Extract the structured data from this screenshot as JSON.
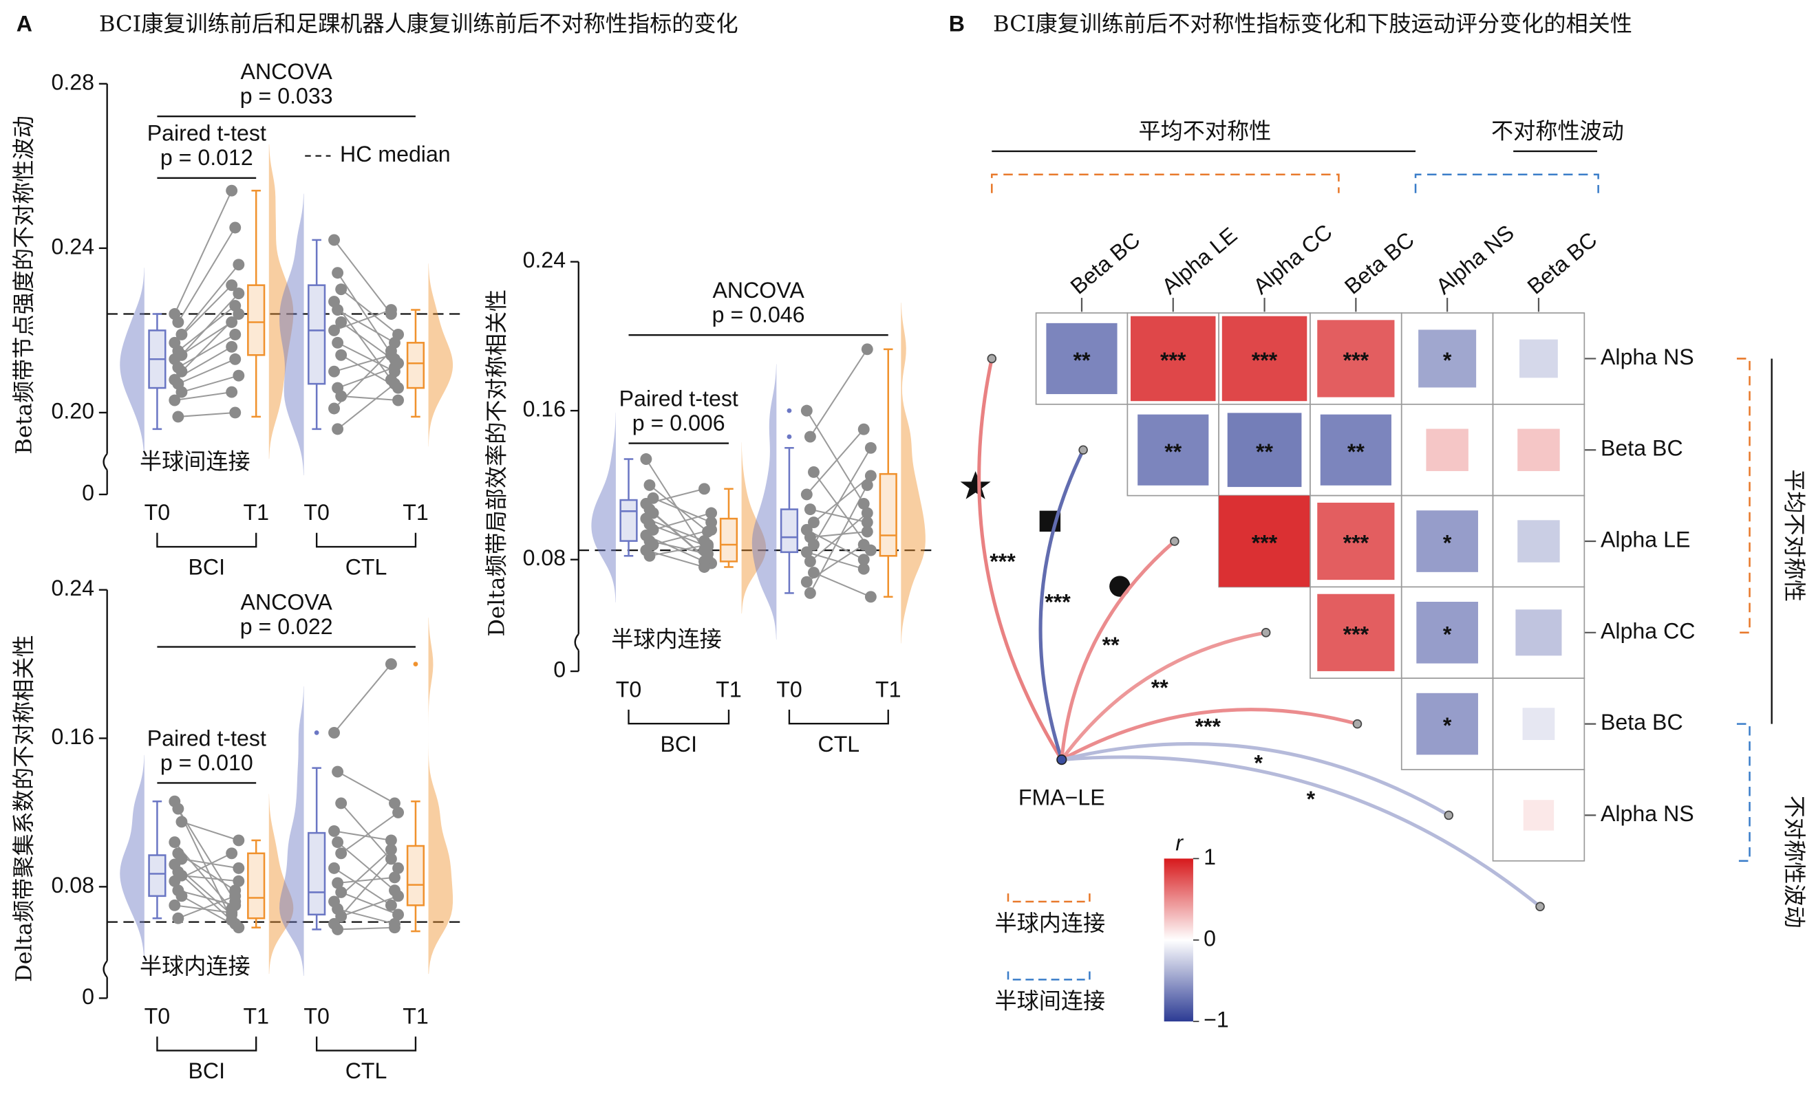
{
  "panels": [
    {
      "label": "A",
      "title": "BCI康复训练前后和足踝机器人康复训练前后不对称性指标的变化"
    },
    {
      "label": "B",
      "title": "BCI康复训练前后不对称性指标变化和下肢运动评分变化的相关性"
    }
  ],
  "chart_data": [
    {
      "type": "box",
      "ylabel": "Beta频带节点强度的不对称性波动",
      "ylim": [
        0.19,
        0.28
      ],
      "yticks": [
        0,
        {
          "value": 0.2,
          "label": "0.20"
        },
        0.24,
        0.28
      ],
      "axis_break": true,
      "categories": [
        "T0",
        "T1",
        "T0",
        "T1"
      ],
      "groups": [
        "BCI",
        "CTL"
      ],
      "colors": [
        "#6b77c4",
        "#f0922e",
        "#6b77c4",
        "#f0922e"
      ],
      "boxes": [
        {
          "whisker_low": 0.196,
          "q1": 0.206,
          "median": 0.213,
          "q3": 0.22,
          "whisker_high": 0.224
        },
        {
          "whisker_low": 0.199,
          "q1": 0.214,
          "median": 0.222,
          "q3": 0.231,
          "whisker_high": 0.254
        },
        {
          "whisker_low": 0.196,
          "q1": 0.207,
          "median": 0.22,
          "q3": 0.231,
          "whisker_high": 0.242
        },
        {
          "whisker_low": 0.199,
          "q1": 0.206,
          "median": 0.212,
          "q3": 0.217,
          "whisker_high": 0.225
        }
      ],
      "points": [
        [
          0.224,
          0.222,
          0.219,
          0.217,
          0.215,
          0.214,
          0.213,
          0.211,
          0.21,
          0.208,
          0.207,
          0.205,
          0.203,
          0.199
        ],
        [
          0.254,
          0.245,
          0.236,
          0.231,
          0.226,
          0.229,
          0.222,
          0.219,
          0.224,
          0.216,
          0.213,
          0.209,
          0.205,
          0.2
        ],
        [
          0.242,
          0.234,
          0.23,
          0.227,
          0.225,
          0.222,
          0.22,
          0.217,
          0.214,
          0.21,
          0.206,
          0.204,
          0.201,
          0.196
        ],
        [
          0.224,
          0.213,
          0.219,
          0.208,
          0.217,
          0.212,
          0.225,
          0.21,
          0.206,
          0.214,
          0.211,
          0.203,
          0.215,
          0.207
        ]
      ],
      "hc_median": 0.224,
      "hc_label": "HC median",
      "region_label": "半球间连接",
      "tests": [
        {
          "name": "ANCOVA",
          "p": "p = 0.033"
        },
        {
          "name": "Paired t-test",
          "p": "p = 0.012"
        }
      ]
    },
    {
      "type": "box",
      "ylabel": "Delta频带聚集系数的不对称相关性",
      "ylim": [
        0.04,
        0.24
      ],
      "yticks": [
        0,
        0.08,
        0.16,
        0.24
      ],
      "axis_break": true,
      "categories": [
        "T0",
        "T1",
        "T0",
        "T1"
      ],
      "groups": [
        "BCI",
        "CTL"
      ],
      "colors": [
        "#6b77c4",
        "#f0922e",
        "#6b77c4",
        "#f0922e"
      ],
      "boxes": [
        {
          "whisker_low": 0.063,
          "q1": 0.075,
          "median": 0.087,
          "q3": 0.097,
          "whisker_high": 0.126
        },
        {
          "whisker_low": 0.058,
          "q1": 0.063,
          "median": 0.074,
          "q3": 0.098,
          "whisker_high": 0.105
        },
        {
          "whisker_low": 0.057,
          "q1": 0.065,
          "median": 0.077,
          "q3": 0.109,
          "whisker_high": 0.144,
          "outliers": [
            0.163
          ]
        },
        {
          "whisker_low": 0.056,
          "q1": 0.07,
          "median": 0.081,
          "q3": 0.102,
          "whisker_high": 0.126,
          "outliers": [
            0.2
          ]
        }
      ],
      "points": [
        [
          0.126,
          0.122,
          0.115,
          0.104,
          0.098,
          0.095,
          0.092,
          0.088,
          0.086,
          0.083,
          0.078,
          0.075,
          0.07,
          0.063
        ],
        [
          0.062,
          0.072,
          0.105,
          0.068,
          0.078,
          0.09,
          0.065,
          0.06,
          0.083,
          0.098,
          0.07,
          0.058,
          0.066,
          0.075
        ],
        [
          0.163,
          0.142,
          0.125,
          0.11,
          0.104,
          0.098,
          0.09,
          0.082,
          0.077,
          0.072,
          0.068,
          0.064,
          0.06,
          0.057
        ],
        [
          0.2,
          0.125,
          0.09,
          0.105,
          0.078,
          0.12,
          0.07,
          0.085,
          0.065,
          0.1,
          0.06,
          0.075,
          0.095,
          0.058
        ]
      ],
      "hc_median": 0.061,
      "region_label": "半球内连接",
      "tests": [
        {
          "name": "ANCOVA",
          "p": "p = 0.022"
        },
        {
          "name": "Paired t-test",
          "p": "p = 0.010"
        }
      ]
    },
    {
      "type": "box",
      "ylabel": "Delta频带局部效率的不对称相关性",
      "ylim": [
        0.04,
        0.24
      ],
      "yticks": [
        0,
        0.08,
        0.16,
        0.24
      ],
      "axis_break": true,
      "categories": [
        "T0",
        "T1",
        "T0",
        "T1"
      ],
      "groups": [
        "BCI",
        "CTL"
      ],
      "colors": [
        "#6b77c4",
        "#f0922e",
        "#6b77c4",
        "#f0922e"
      ],
      "boxes": [
        {
          "whisker_low": 0.082,
          "q1": 0.09,
          "median": 0.106,
          "q3": 0.112,
          "whisker_high": 0.134
        },
        {
          "whisker_low": 0.076,
          "q1": 0.079,
          "median": 0.088,
          "q3": 0.102,
          "whisker_high": 0.118
        },
        {
          "whisker_low": 0.062,
          "q1": 0.084,
          "median": 0.092,
          "q3": 0.107,
          "whisker_high": 0.14,
          "outliers": [
            0.146,
            0.16
          ]
        },
        {
          "whisker_low": 0.06,
          "q1": 0.082,
          "median": 0.093,
          "q3": 0.126,
          "whisker_high": 0.193
        }
      ],
      "points": [
        [
          0.134,
          0.12,
          0.113,
          0.11,
          0.107,
          0.105,
          0.102,
          0.099,
          0.096,
          0.093,
          0.09,
          0.088,
          0.085,
          0.082
        ],
        [
          0.085,
          0.095,
          0.1,
          0.118,
          0.08,
          0.078,
          0.09,
          0.087,
          0.105,
          0.079,
          0.083,
          0.096,
          0.076,
          0.088
        ],
        [
          0.16,
          0.146,
          0.127,
          0.115,
          0.107,
          0.1,
          0.096,
          0.092,
          0.088,
          0.084,
          0.079,
          0.073,
          0.068,
          0.062
        ],
        [
          0.11,
          0.193,
          0.085,
          0.15,
          0.1,
          0.125,
          0.08,
          0.095,
          0.14,
          0.075,
          0.105,
          0.06,
          0.088,
          0.12
        ]
      ],
      "hc_median": 0.085,
      "region_label": "半球内连接",
      "tests": [
        {
          "name": "ANCOVA",
          "p": "p = 0.046"
        },
        {
          "name": "Paired t-test",
          "p": "p = 0.006"
        }
      ]
    },
    {
      "type": "correlation",
      "headers": [
        "平均不对称性",
        "不对称性波动"
      ],
      "columns": [
        {
          "name": "Beta BC",
          "color": "#111111"
        },
        {
          "name": "Alpha LE",
          "color": "#111111"
        },
        {
          "name": "Alpha CC",
          "color": "#111111"
        },
        {
          "name": "Beta BC",
          "color": "#111111"
        },
        {
          "name": "Alpha NS",
          "color": "#7a7a7a"
        },
        {
          "name": "Beta BC",
          "color": "#7a7a7a"
        }
      ],
      "rows": [
        {
          "name": "Alpha NS",
          "color": "#111111"
        },
        {
          "name": "Beta BC",
          "color": "#111111"
        },
        {
          "name": "Alpha LE",
          "color": "#111111"
        },
        {
          "name": "Alpha CC",
          "color": "#111111"
        },
        {
          "name": "Beta BC",
          "color": "#111111"
        },
        {
          "name": "Alpha NS",
          "color": "#7a7a7a"
        }
      ],
      "cells": [
        [
          {
            "r": -0.62,
            "label": "**"
          },
          {
            "r": 0.8,
            "label": "***"
          },
          {
            "r": 0.8,
            "label": "***"
          },
          {
            "r": 0.7,
            "label": "***"
          },
          {
            "r": -0.45,
            "label": "*"
          },
          {
            "r": -0.2
          }
        ],
        [
          {
            "r": -0.62,
            "label": "**"
          },
          {
            "r": -0.66,
            "label": "**"
          },
          {
            "r": -0.62,
            "label": "**"
          },
          {
            "r": 0.25
          },
          {
            "r": 0.25
          }
        ],
        [
          {
            "r": 0.9,
            "label": "***"
          },
          {
            "r": 0.7,
            "label": "***"
          },
          {
            "r": -0.5,
            "label": "*"
          },
          {
            "r": -0.25
          }
        ],
        [
          {
            "r": 0.7,
            "label": "***"
          },
          {
            "r": -0.5,
            "label": "*"
          },
          {
            "r": -0.3
          }
        ],
        [
          {
            "r": -0.5,
            "label": "*"
          },
          {
            "r": -0.12
          }
        ],
        [
          {
            "r": 0.1
          }
        ]
      ],
      "fma_label": "FMA−LE",
      "fma_links": [
        {
          "r": 0.55,
          "label": "***"
        },
        {
          "r": -0.75,
          "label": "***"
        },
        {
          "r": 0.5,
          "label": "**"
        },
        {
          "r": 0.45,
          "label": "**"
        },
        {
          "r": 0.5,
          "label": "***"
        },
        {
          "r": -0.35,
          "label": "*"
        },
        {
          "r": -0.35,
          "label": "*"
        }
      ],
      "colorbar": {
        "label": "r",
        "lim": [
          -1,
          1
        ],
        "ticks": [
          1,
          0,
          {
            "value": -1,
            "label": "−1"
          }
        ]
      },
      "legend": [
        {
          "text": "半球内连接",
          "color": "#e8792b"
        },
        {
          "text": "半球间连接",
          "color": "#3a7dc9"
        }
      ],
      "colors": {
        "negative": "#2c3b94",
        "positive": "#d7191c"
      }
    }
  ]
}
